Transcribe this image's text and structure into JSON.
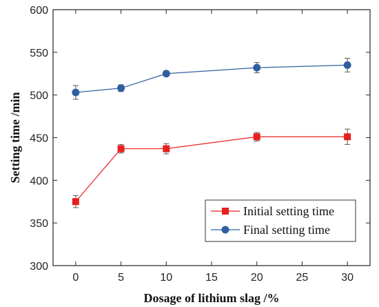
{
  "chart_data": {
    "type": "line",
    "title": "",
    "xlabel": "Dosage of lithium slag /%",
    "ylabel": "Setting time /min",
    "xlim": [
      -2.5,
      32.5
    ],
    "ylim": [
      300,
      600
    ],
    "xticks": [
      0,
      5,
      10,
      15,
      20,
      25,
      30
    ],
    "yticks": [
      300,
      350,
      400,
      450,
      500,
      550,
      600
    ],
    "grid": false,
    "legend_position": "bottom-right",
    "x": [
      0,
      5,
      10,
      20,
      30
    ],
    "series": [
      {
        "name": "Initial setting time",
        "marker": "square",
        "color": "#e8201c",
        "values": [
          375,
          437,
          437,
          451,
          451
        ],
        "errors": [
          7,
          5,
          6,
          5,
          9
        ]
      },
      {
        "name": "Final setting time",
        "marker": "circle",
        "color": "#2f5fa0",
        "values": [
          503,
          508,
          525,
          532,
          535
        ],
        "errors": [
          8,
          4,
          3,
          6,
          8
        ]
      }
    ]
  }
}
